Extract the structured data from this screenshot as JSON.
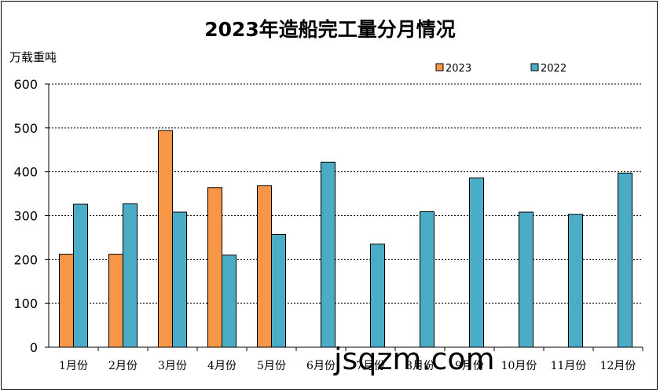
{
  "chart_data": {
    "type": "bar",
    "title": "2023年造船完工量分月情况",
    "ylabel": "万载重吨",
    "xlabel": "",
    "categories": [
      "1月份",
      "2月份",
      "3月份",
      "4月份",
      "5月份",
      "6月份",
      "7月份",
      "8月份",
      "9月份",
      "10月份",
      "11月份",
      "12月份"
    ],
    "series": [
      {
        "name": "2023",
        "color": "#F79646",
        "values": [
          212,
          212,
          494,
          364,
          368,
          null,
          null,
          null,
          null,
          null,
          null,
          null
        ]
      },
      {
        "name": "2022",
        "color": "#4BACC6",
        "values": [
          326,
          327,
          308,
          210,
          257,
          422,
          235,
          309,
          386,
          308,
          303,
          397
        ]
      }
    ],
    "ylim": [
      0,
      600
    ],
    "yticks": [
      0,
      100,
      200,
      300,
      400,
      500,
      600
    ],
    "grid": "horizontal-dashed",
    "legend": "top-right"
  },
  "watermark": "jsqzm.com"
}
